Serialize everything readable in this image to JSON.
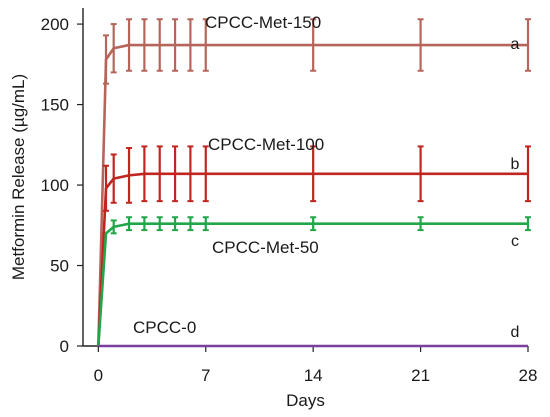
{
  "chart_data": {
    "type": "line",
    "xlabel": "Days",
    "ylabel": "Metformin Release (µg/mL)",
    "xlim": [
      -1,
      28
    ],
    "ylim": [
      0,
      210
    ],
    "xticks": [
      0,
      7,
      14,
      21,
      28
    ],
    "yticks": [
      0,
      50,
      100,
      150,
      200
    ],
    "grid": false,
    "x": [
      0,
      0.5,
      1,
      2,
      3,
      4,
      5,
      6,
      7,
      14,
      21,
      28
    ],
    "series": [
      {
        "name": "CPCC-Met-150",
        "letter": "a",
        "color": "#b5655a",
        "error_color": "#b5655a",
        "values": [
          0,
          178,
          185,
          187,
          187,
          187,
          187,
          187,
          187,
          187,
          187,
          187
        ],
        "errors": [
          0,
          15,
          15,
          16,
          16,
          16,
          16,
          16,
          16,
          16,
          16,
          16
        ],
        "error_from_index": 1
      },
      {
        "name": "CPCC-Met-100",
        "letter": "b",
        "color": "#c0251f",
        "error_color": "#c0251f",
        "values": [
          0,
          98,
          104,
          106,
          107,
          107,
          107,
          107,
          107,
          107,
          107,
          107
        ],
        "errors": [
          0,
          14,
          15,
          17,
          17,
          17,
          17,
          17,
          17,
          17,
          17,
          17
        ],
        "error_from_index": 1
      },
      {
        "name": "CPCC-Met-50",
        "letter": "c",
        "color": "#21a64a",
        "error_color": "#21a64a",
        "values": [
          0,
          70,
          74,
          76,
          76,
          76,
          76,
          76,
          76,
          76,
          76,
          76
        ],
        "errors": [
          0,
          4,
          4,
          4,
          4,
          4,
          4,
          4,
          4,
          4,
          4,
          4
        ],
        "error_from_index": 2
      },
      {
        "name": "CPCC-0",
        "letter": "d",
        "color": "#7b3fa1",
        "error_color": "#7b3fa1",
        "values": [
          0,
          0,
          0,
          0,
          0,
          0,
          0,
          0,
          0,
          0,
          0,
          0
        ],
        "errors": [
          0,
          0,
          0,
          0,
          0,
          0,
          0,
          0,
          0,
          0,
          0,
          0
        ],
        "error_from_index": 12
      }
    ]
  }
}
